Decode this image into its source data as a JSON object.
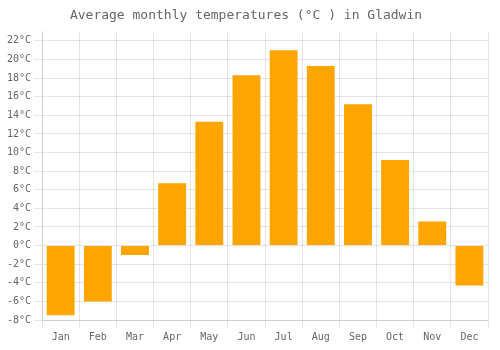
{
  "chart_data": {
    "type": "bar",
    "title": "Average monthly temperatures (°C ) in Gladwin",
    "categories": [
      "Jan",
      "Feb",
      "Mar",
      "Apr",
      "May",
      "Jun",
      "Jul",
      "Aug",
      "Sep",
      "Oct",
      "Nov",
      "Dec"
    ],
    "values": [
      -7.5,
      -6.0,
      -1.0,
      6.7,
      13.3,
      18.3,
      21.0,
      19.3,
      15.2,
      9.2,
      2.6,
      -4.3
    ],
    "color": "#FFA500",
    "ylim": [
      -8,
      23
    ],
    "yticks": [
      {
        "value": -8,
        "label": "-8°C"
      },
      {
        "value": -6,
        "label": "-6°C"
      },
      {
        "value": -4,
        "label": "-4°C"
      },
      {
        "value": -2,
        "label": "-2°C"
      },
      {
        "value": 0,
        "label": "0°C"
      },
      {
        "value": 2,
        "label": "2°C"
      },
      {
        "value": 4,
        "label": "4°C"
      },
      {
        "value": 6,
        "label": "6°C"
      },
      {
        "value": 8,
        "label": "8°C"
      },
      {
        "value": 10,
        "label": "10°C"
      },
      {
        "value": 12,
        "label": "12°C"
      },
      {
        "value": 14,
        "label": "14°C"
      },
      {
        "value": 16,
        "label": "16°C"
      },
      {
        "value": 18,
        "label": "18°C"
      },
      {
        "value": 20,
        "label": "20°C"
      },
      {
        "value": 22,
        "label": "22°C"
      }
    ],
    "grid": true
  }
}
